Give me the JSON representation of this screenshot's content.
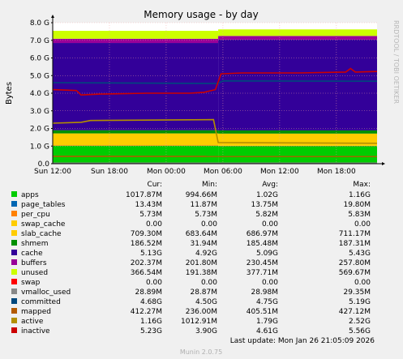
{
  "chart_data": {
    "type": "area",
    "title": "Memory usage - by day",
    "ylabel": "Bytes",
    "side_label": "RRDTOOL / TOBI OETIKER",
    "ylim": [
      0,
      8
    ],
    "y_ticks": [
      {
        "value": 0,
        "label": "0.0"
      },
      {
        "value": 1,
        "label": "1.0 G"
      },
      {
        "value": 2,
        "label": "2.0 G"
      },
      {
        "value": 3,
        "label": "3.0 G"
      },
      {
        "value": 4,
        "label": "4.0 G"
      },
      {
        "value": 5,
        "label": "5.0 G"
      },
      {
        "value": 6,
        "label": "6.0 G"
      },
      {
        "value": 7,
        "label": "7.0 G"
      },
      {
        "value": 8,
        "label": "8.0 G"
      }
    ],
    "x_ticks": [
      {
        "hour": 0,
        "label": "Sun 12:00"
      },
      {
        "hour": 6,
        "label": "Sun 18:00"
      },
      {
        "hour": 12,
        "label": "Mon 00:00"
      },
      {
        "hour": 18,
        "label": "Mon 06:00"
      },
      {
        "hour": 24,
        "label": "Mon 12:00"
      },
      {
        "hour": 30,
        "label": "Mon 18:00"
      }
    ],
    "x_range_hours": [
      0,
      34.3
    ],
    "stack_order": [
      "apps",
      "page_tables",
      "per_cpu",
      "swap_cache",
      "slab_cache",
      "shmem",
      "cache",
      "buffers",
      "unused",
      "swap"
    ],
    "colors": {
      "apps": "#00cc00",
      "page_tables": "#0066b3",
      "per_cpu": "#ff8000",
      "swap_cache": "#ffcc00",
      "slab_cache": "#ffcc00",
      "shmem": "#008f00",
      "cache": "#330099",
      "buffers": "#990099",
      "unused": "#ccff00",
      "swap": "#ff0000",
      "vmalloc_used": "#888888",
      "committed": "#00487d",
      "mapped": "#b35a00",
      "active": "#b38f00",
      "inactive": "#cc0000"
    },
    "legend": {
      "headers": [
        "Cur:",
        "Min:",
        "Avg:",
        "Max:"
      ],
      "rows": [
        {
          "name": "apps",
          "cur": "1017.87M",
          "min": "994.66M",
          "avg": "1.02G",
          "max": "1.16G"
        },
        {
          "name": "page_tables",
          "cur": "13.43M",
          "min": "11.87M",
          "avg": "13.75M",
          "max": "19.80M"
        },
        {
          "name": "per_cpu",
          "cur": "5.73M",
          "min": "5.73M",
          "avg": "5.82M",
          "max": "5.83M"
        },
        {
          "name": "swap_cache",
          "cur": "0.00",
          "min": "0.00",
          "avg": "0.00",
          "max": "0.00"
        },
        {
          "name": "slab_cache",
          "cur": "709.30M",
          "min": "683.64M",
          "avg": "686.97M",
          "max": "711.17M"
        },
        {
          "name": "shmem",
          "cur": "186.52M",
          "min": "31.94M",
          "avg": "185.48M",
          "max": "187.31M"
        },
        {
          "name": "cache",
          "cur": "5.13G",
          "min": "4.92G",
          "avg": "5.09G",
          "max": "5.43G"
        },
        {
          "name": "buffers",
          "cur": "202.37M",
          "min": "201.80M",
          "avg": "230.45M",
          "max": "257.80M"
        },
        {
          "name": "unused",
          "cur": "366.54M",
          "min": "191.38M",
          "avg": "377.71M",
          "max": "569.67M"
        },
        {
          "name": "swap",
          "cur": "0.00",
          "min": "0.00",
          "avg": "0.00",
          "max": "0.00"
        },
        {
          "name": "vmalloc_used",
          "cur": "28.89M",
          "min": "28.87M",
          "avg": "28.98M",
          "max": "29.35M"
        },
        {
          "name": "committed",
          "cur": "4.68G",
          "min": "4.50G",
          "avg": "4.75G",
          "max": "5.19G"
        },
        {
          "name": "mapped",
          "cur": "412.27M",
          "min": "236.00M",
          "avg": "405.51M",
          "max": "427.12M"
        },
        {
          "name": "active",
          "cur": "1.16G",
          "min": "1012.91M",
          "avg": "1.79G",
          "max": "2.52G"
        },
        {
          "name": "inactive",
          "cur": "5.23G",
          "min": "3.90G",
          "avg": "4.61G",
          "max": "5.56G"
        }
      ]
    },
    "series_profiles": {
      "stack_segments": [
        {
          "from": 0,
          "to": 17.5,
          "apps": 1.02,
          "slab_cache": 0.68,
          "shmem": 0.18,
          "cache": 4.95,
          "buffers": 0.24,
          "unused": 0.45
        },
        {
          "from": 17.5,
          "to": 34.3,
          "apps": 1.0,
          "slab_cache": 0.69,
          "shmem": 0.18,
          "cache": 5.15,
          "buffers": 0.21,
          "unused": 0.37
        }
      ],
      "inactive": [
        [
          0,
          4.2
        ],
        [
          2.5,
          4.15
        ],
        [
          3.0,
          3.9
        ],
        [
          5.0,
          3.95
        ],
        [
          10.0,
          4.0
        ],
        [
          14.5,
          4.0
        ],
        [
          16.0,
          4.05
        ],
        [
          17.2,
          4.2
        ],
        [
          17.8,
          5.1
        ],
        [
          20.0,
          5.15
        ],
        [
          26.0,
          5.15
        ],
        [
          31.0,
          5.2
        ],
        [
          31.5,
          5.4
        ],
        [
          32.0,
          5.2
        ],
        [
          34.3,
          5.23
        ]
      ],
      "committed": [
        [
          0,
          4.6
        ],
        [
          17.5,
          4.55
        ],
        [
          18.0,
          4.7
        ],
        [
          34.3,
          4.68
        ]
      ],
      "active": [
        [
          0,
          2.3
        ],
        [
          3.0,
          2.35
        ],
        [
          4.0,
          2.45
        ],
        [
          17.0,
          2.5
        ],
        [
          17.5,
          1.2
        ],
        [
          34.3,
          1.16
        ]
      ],
      "mapped": [
        [
          0,
          0.42
        ],
        [
          34.3,
          0.41
        ]
      ],
      "vmalloc_used": [
        [
          0,
          0.03
        ],
        [
          34.3,
          0.03
        ]
      ]
    },
    "footer": "Last update: Mon Jan 26 21:05:09 2026",
    "credit": "Munin 2.0.75"
  }
}
